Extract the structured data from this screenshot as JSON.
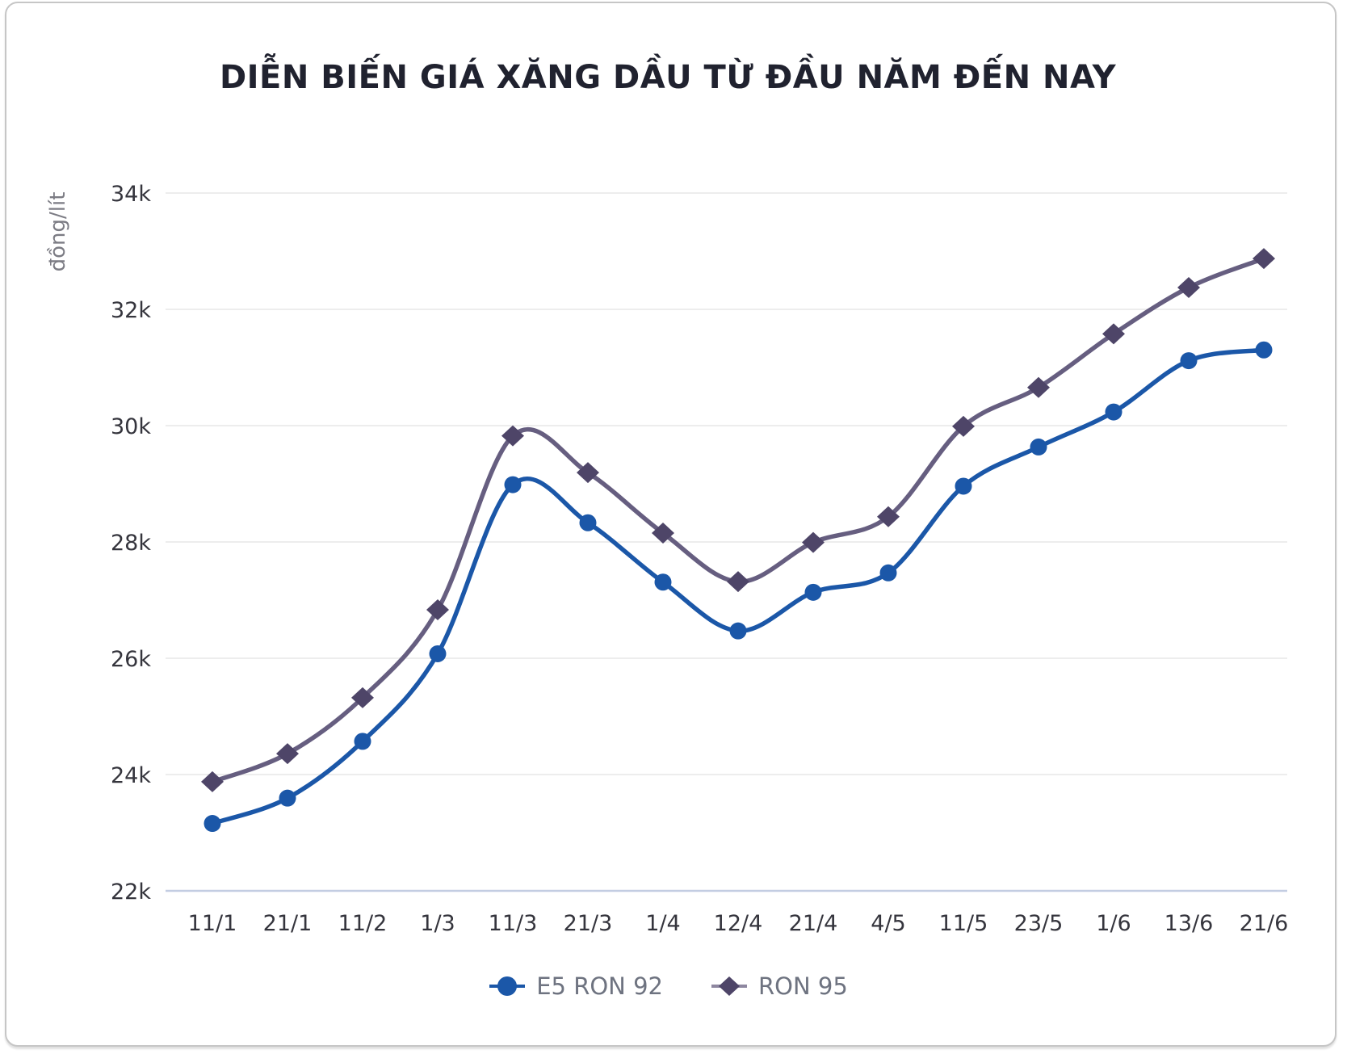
{
  "title": "DIỄN BIẾN GIÁ XĂNG DẦU TỪ ĐẦU NĂM ĐẾN NAY",
  "y_axis_label": "đồng/lít",
  "colors": {
    "title_text": "#20222f",
    "tick_text": "#35353d",
    "axis_label_text": "#7c7c84",
    "legend_text": "#6e7380",
    "gridline": "#ededed",
    "baseline_axis": "#c3cde2",
    "card_border": "#c6c6c6",
    "e5_ron_92_blue": "#1b57a8",
    "ron_95_line": "#665e80",
    "ron_95_marker": "#4e4568"
  },
  "chart_data": {
    "type": "line",
    "title": "DIỄN BIẾN GIÁ XĂNG DẦU TỪ ĐẦU NĂM ĐẾN NAY",
    "xlabel": "",
    "ylabel": "đồng/lít",
    "grid": true,
    "legend_position": "bottom",
    "ylim": [
      22000,
      34000
    ],
    "yticks": [
      {
        "value": 22000,
        "label": "22k"
      },
      {
        "value": 24000,
        "label": "24k"
      },
      {
        "value": 26000,
        "label": "26k"
      },
      {
        "value": 28000,
        "label": "28k"
      },
      {
        "value": 30000,
        "label": "30k"
      },
      {
        "value": 32000,
        "label": "32k"
      },
      {
        "value": 34000,
        "label": "34k"
      }
    ],
    "categories": [
      "11/1",
      "21/1",
      "11/2",
      "1/3",
      "11/3",
      "21/3",
      "1/4",
      "12/4",
      "21/4",
      "4/5",
      "11/5",
      "23/5",
      "1/6",
      "13/6",
      "21/6"
    ],
    "series": [
      {
        "name": "E5 RON 92",
        "marker": "circle",
        "line_color": "#1b57a8",
        "marker_color": "#1b57a8",
        "values": [
          23159,
          23595,
          24571,
          26077,
          28985,
          28330,
          27309,
          26470,
          27134,
          27468,
          28959,
          29633,
          30235,
          31117,
          31302
        ]
      },
      {
        "name": "RON 95",
        "marker": "diamond",
        "line_color": "#665e80",
        "marker_color": "#4e4568",
        "values": [
          23876,
          24360,
          25322,
          26834,
          29824,
          29192,
          28153,
          27317,
          27992,
          28434,
          29988,
          30657,
          31578,
          32375,
          32873
        ]
      }
    ]
  }
}
